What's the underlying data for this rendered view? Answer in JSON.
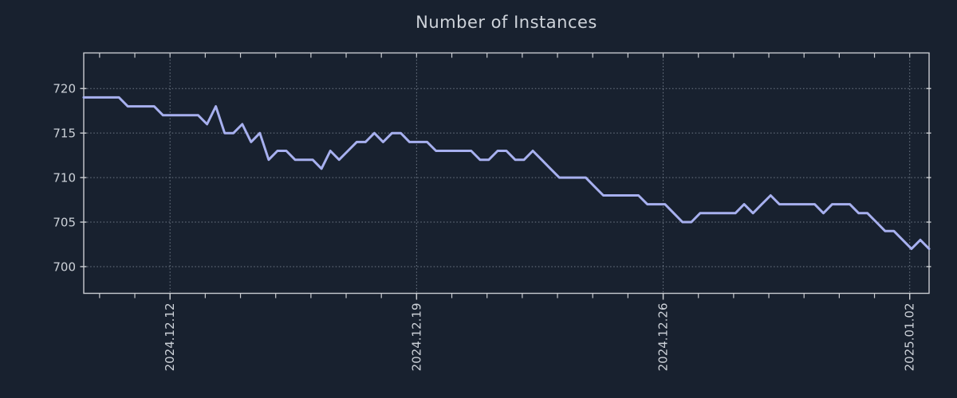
{
  "colors": {
    "background": "#18212f",
    "line": "#a7b0ef",
    "grid": "#8d97a5",
    "spine": "#c9ccd1",
    "tick_label": "#ccd1d8",
    "title": "#ced3da"
  },
  "chart_data": {
    "type": "line",
    "title": "Number of Instances",
    "series_name": "instances",
    "grid": "dotted",
    "legend": false,
    "points_per_day": 4,
    "interval_hours": 6,
    "xlim_days": [
      0,
      24
    ],
    "ylim": [
      697,
      724
    ],
    "y_ticks": [
      700,
      705,
      710,
      715,
      720
    ],
    "x_major_ticks": [
      {
        "label": "2024.12.12",
        "day": 2.45
      },
      {
        "label": "2024.12.19",
        "day": 9.45
      },
      {
        "label": "2024.12.26",
        "day": 16.45
      },
      {
        "label": "2025.01.02",
        "day": 23.45
      }
    ],
    "x_minor_ticks": {
      "first_day": 0.45,
      "step_days": 1,
      "count": 24
    },
    "values": [
      719,
      719,
      719,
      719,
      719,
      718,
      718,
      718,
      718,
      717,
      717,
      717,
      717,
      717,
      716,
      718,
      715,
      715,
      716,
      714,
      715,
      712,
      713,
      713,
      712,
      712,
      712,
      711,
      713,
      712,
      713,
      714,
      714,
      715,
      714,
      715,
      715,
      714,
      714,
      714,
      713,
      713,
      713,
      713,
      713,
      712,
      712,
      713,
      713,
      712,
      712,
      713,
      712,
      711,
      710,
      710,
      710,
      710,
      709,
      708,
      708,
      708,
      708,
      708,
      707,
      707,
      707,
      706,
      705,
      705,
      706,
      706,
      706,
      706,
      706,
      707,
      706,
      707,
      708,
      707,
      707,
      707,
      707,
      707,
      706,
      707,
      707,
      707,
      706,
      706,
      705,
      704,
      704,
      703,
      702,
      703,
      702
    ]
  }
}
